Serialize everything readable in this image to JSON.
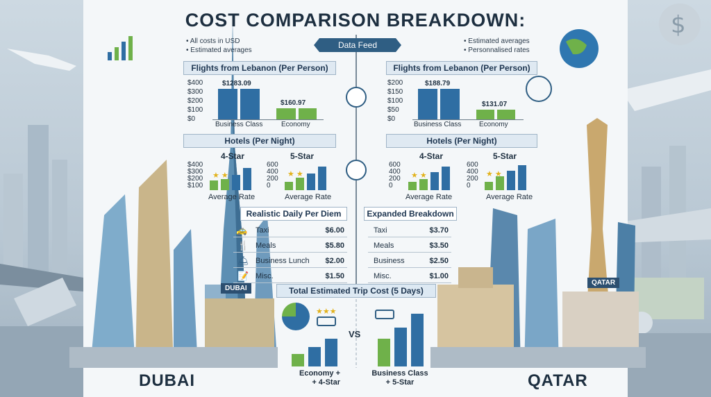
{
  "title": "COST COMPARISON BREAKDOWN:",
  "notes_left": [
    "• All costs in USD",
    "• Estimated averages"
  ],
  "notes_right": [
    "• Estimated averages",
    "• Personnalised rates"
  ],
  "data_feed": "Data Feed",
  "dubai": {
    "flights_title": "Flights from Lebanon (Per Person)",
    "flights_axis": [
      "$400",
      "$300",
      "$200",
      "$100",
      "$0"
    ],
    "flights_values": [
      "$1283.09",
      "$160.97"
    ],
    "flights_cats": [
      "Business Class",
      "Economy"
    ],
    "hotels_title": "Hotels (Per Night)",
    "hotel4": "4-Star",
    "hotel5": "5-Star",
    "hotel4_axis": [
      "$400",
      "$300",
      "$200",
      "$100"
    ],
    "hotel5_axis": [
      "600",
      "400",
      "200",
      "0"
    ],
    "hotel_caption": "Average Rate",
    "perdiem_title": "Realistic Daily Per Diem",
    "perdiem": [
      {
        "label": "Taxi",
        "value": "$6.00"
      },
      {
        "label": "Meals",
        "value": "$5.80"
      },
      {
        "label": "Business Lunch",
        "value": "$2.00"
      },
      {
        "label": "Misc.",
        "value": "$1.50"
      }
    ],
    "city": "DUBAI",
    "tag": "DUBAI",
    "combo": [
      "Economy +",
      "+ 4-Star"
    ]
  },
  "qatar": {
    "flights_title": "Flights from Lebanon (Per Person)",
    "flights_axis": [
      "$200",
      "$150",
      "$100",
      "$50",
      "$0"
    ],
    "flights_values": [
      "$188.79",
      "$131.07"
    ],
    "flights_cats": [
      "Business Class",
      "Economy"
    ],
    "hotels_title": "Hotels (Per Night)",
    "hotel4": "4-Star",
    "hotel5": "5-Star",
    "hotel4_axis": [
      "600",
      "400",
      "200",
      "0"
    ],
    "hotel5_axis": [
      "600",
      "400",
      "200",
      "0"
    ],
    "hotel_caption": "Average Rate",
    "perdiem_title": "Expanded Breakdown",
    "perdiem": [
      {
        "label": "Taxi",
        "value": "$3.70"
      },
      {
        "label": "Meals",
        "value": "$3.50"
      },
      {
        "label": "Business",
        "value": "$2.50"
      },
      {
        "label": "Misc.",
        "value": "$1.00"
      }
    ],
    "city": "QATAR",
    "tag": "QATAR",
    "combo": [
      "Business Class",
      "+ 5-Star"
    ]
  },
  "total_title": "Total Estimated Trip Cost (5 Days)",
  "vs": "VS",
  "colors": {
    "blue": "#2f6ea3",
    "green": "#6fb14a",
    "dark": "#1d2f40"
  }
}
